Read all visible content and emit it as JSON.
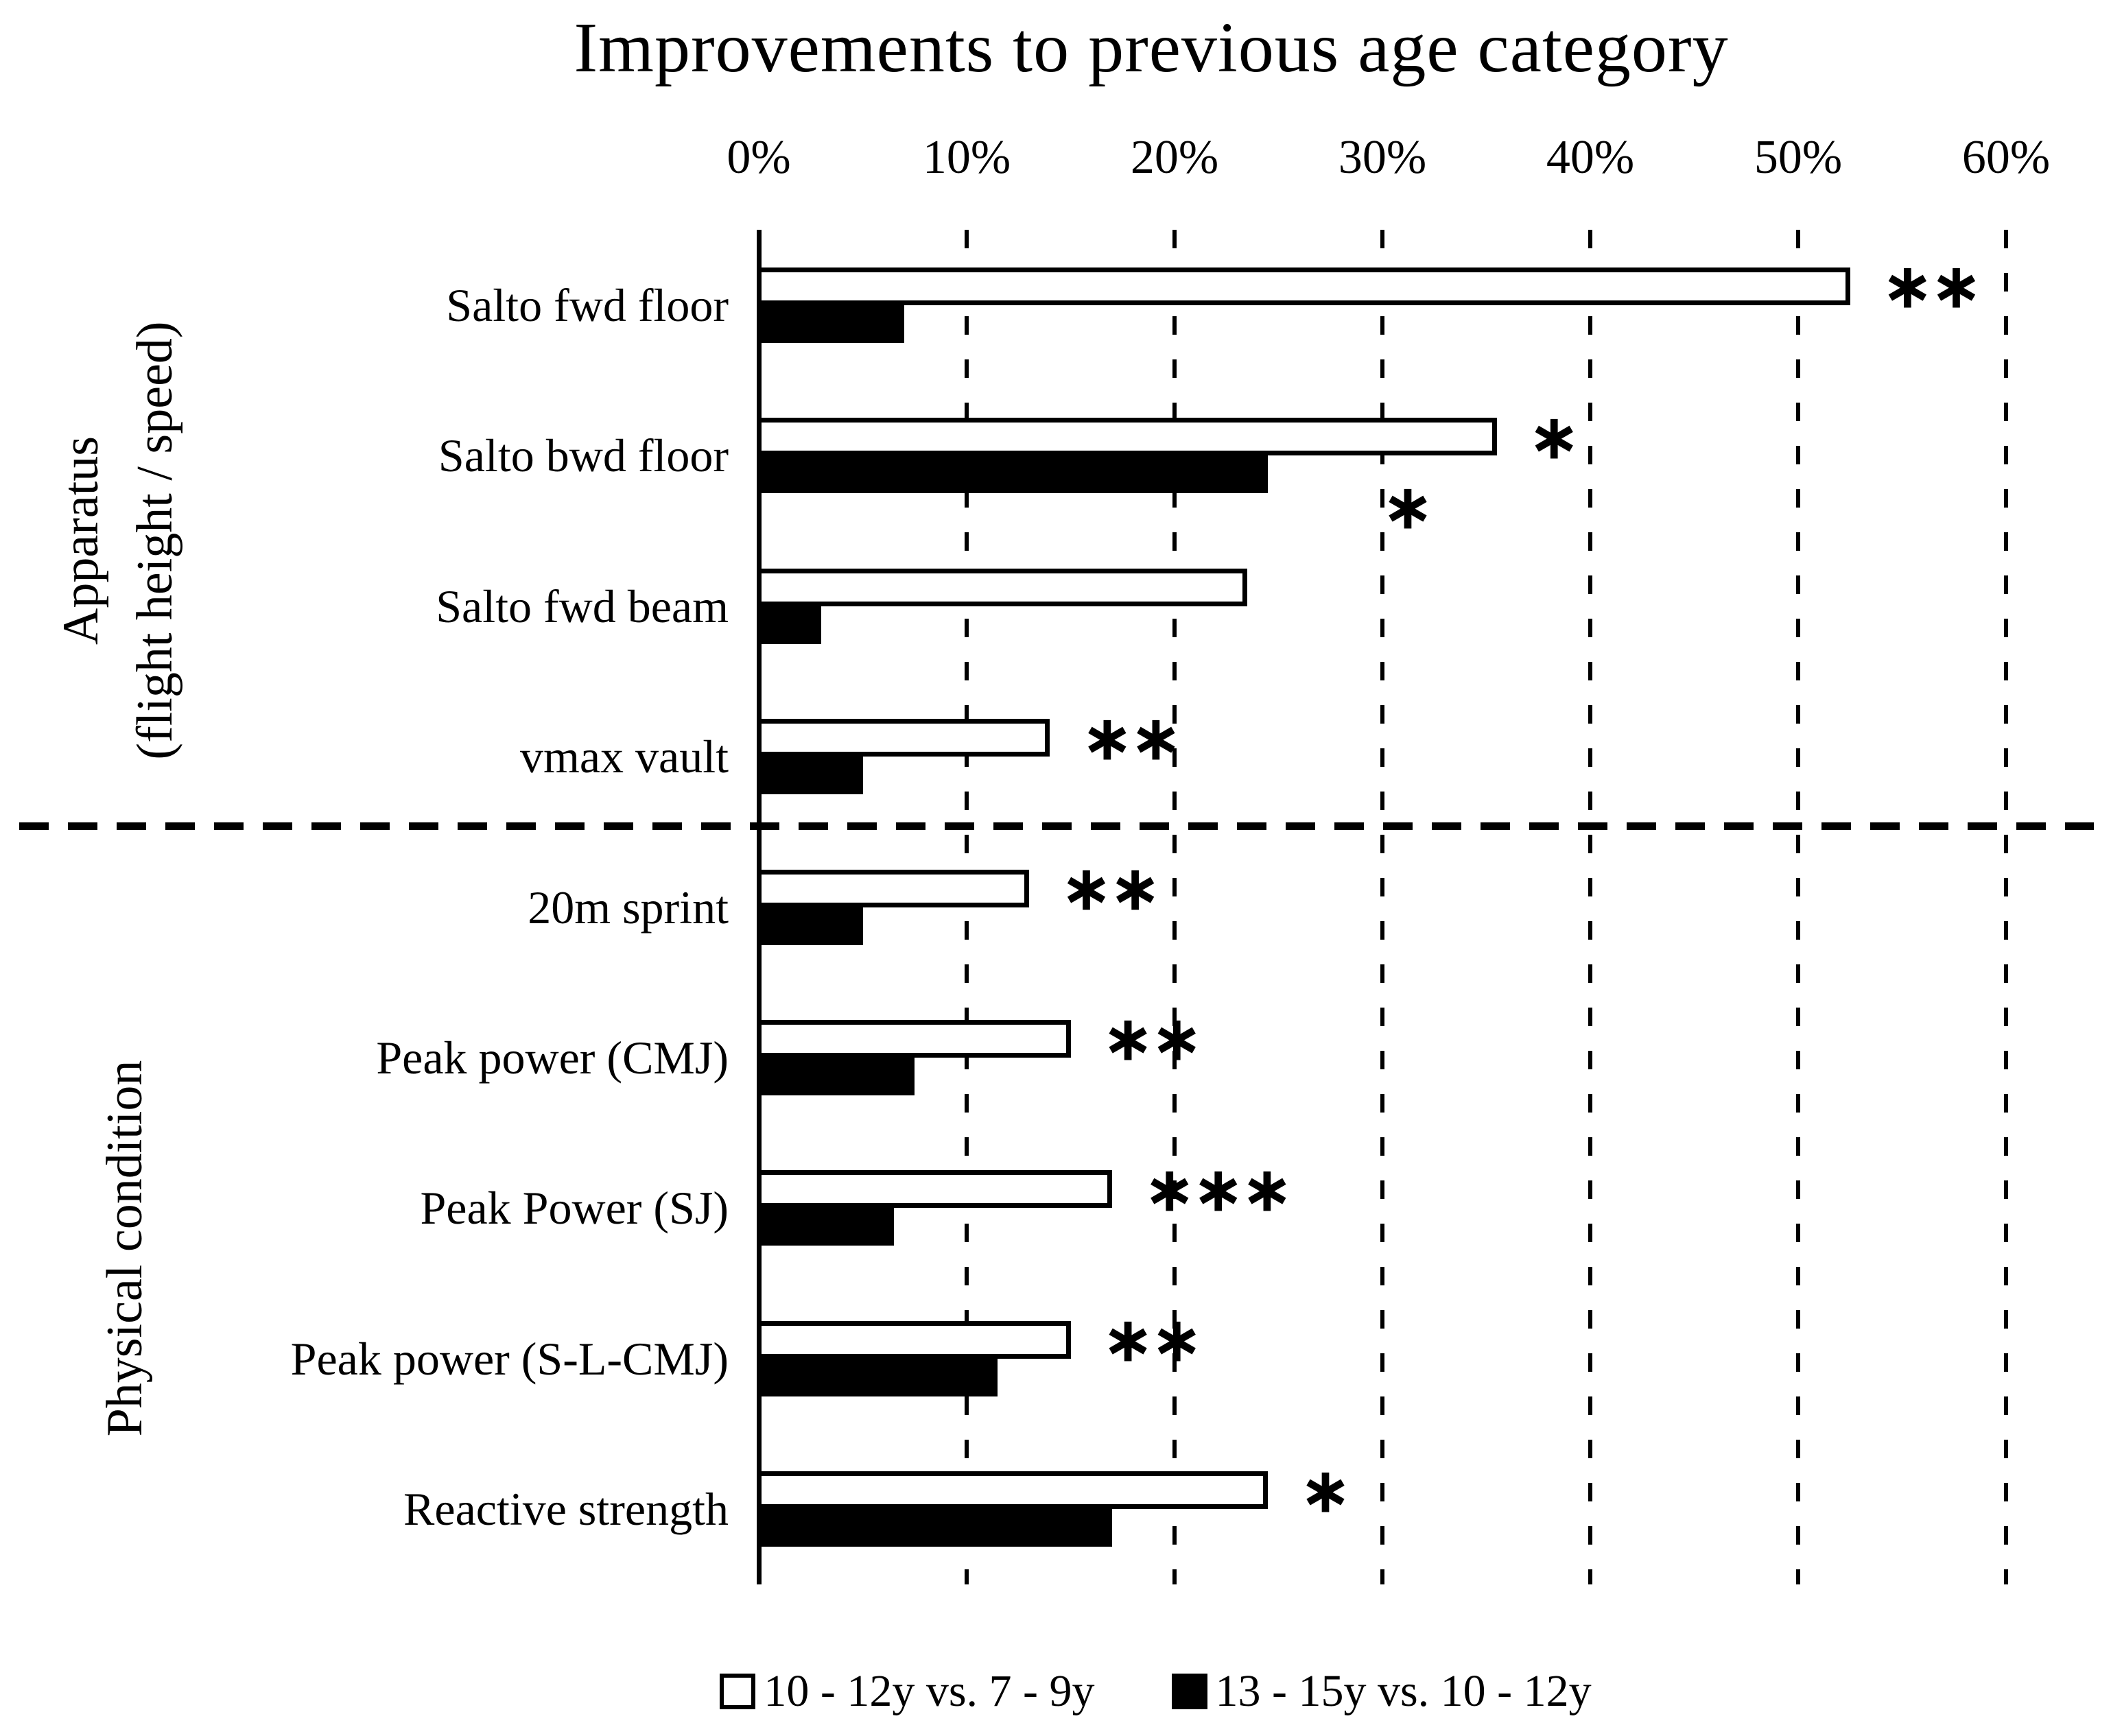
{
  "chart_data": {
    "type": "bar",
    "orientation": "horizontal",
    "title": "Improvements to previous age category",
    "xlabel": "",
    "ylabel": "",
    "x_ticks": [
      "0%",
      "10%",
      "20%",
      "30%",
      "40%",
      "50%",
      "60%"
    ],
    "xlim": [
      0,
      60
    ],
    "x_unit": "percent",
    "gridlines": "dashed-vertical",
    "legend_position": "bottom",
    "colors": {
      "foreground": "#000000",
      "background": "#ffffff"
    },
    "series": [
      {
        "name": "10 - 12y vs. 7 - 9y",
        "fill": "#ffffff",
        "border": "#000000"
      },
      {
        "name": "13 - 15y vs. 10 - 12y",
        "fill": "#000000",
        "border": "#000000"
      }
    ],
    "groups": [
      {
        "label_lines": [
          "Apparatus",
          "(flight height / speed)"
        ],
        "rows": [
          0,
          1,
          2,
          3
        ]
      },
      {
        "label_lines": [
          "Physical condition"
        ],
        "rows": [
          4,
          5,
          6,
          7,
          8
        ]
      }
    ],
    "rows": [
      {
        "category": "Salto fwd floor",
        "values": [
          52.5,
          7.0
        ],
        "sig": [
          "**",
          ""
        ]
      },
      {
        "category": "Salto bwd floor",
        "values": [
          35.5,
          24.5
        ],
        "sig": [
          "*",
          "*"
        ]
      },
      {
        "category": "Salto fwd beam",
        "values": [
          23.5,
          3.0
        ],
        "sig": [
          "",
          ""
        ]
      },
      {
        "category": "vmax vault",
        "values": [
          14.0,
          5.0
        ],
        "sig": [
          "**",
          ""
        ]
      },
      {
        "category": "20m sprint",
        "values": [
          13.0,
          5.0
        ],
        "sig": [
          "**",
          ""
        ]
      },
      {
        "category": "Peak power (CMJ)",
        "values": [
          15.0,
          7.5
        ],
        "sig": [
          "**",
          ""
        ]
      },
      {
        "category": "Peak Power (SJ)",
        "values": [
          17.0,
          6.5
        ],
        "sig": [
          "***",
          ""
        ]
      },
      {
        "category": "Peak power (S-L-CMJ)",
        "values": [
          15.0,
          11.5
        ],
        "sig": [
          "**",
          ""
        ]
      },
      {
        "category": "Reactive strength",
        "values": [
          24.5,
          17.0
        ],
        "sig": [
          "*",
          ""
        ]
      }
    ]
  }
}
